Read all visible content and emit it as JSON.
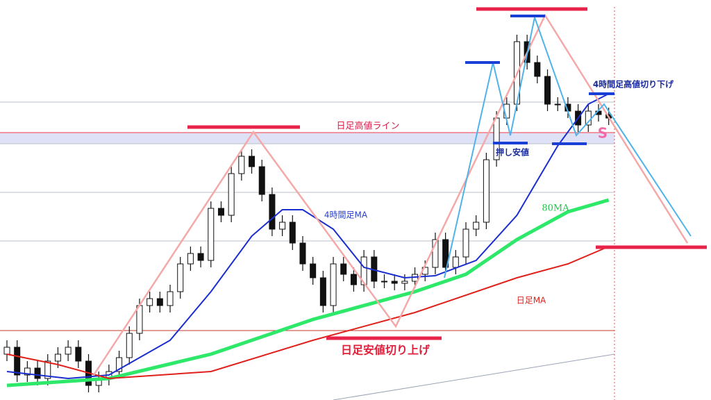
{
  "chart_data": {
    "type": "candlestick",
    "xlim": [
      -0.68,
      69.03
    ],
    "ylim": [
      0,
      576
    ],
    "open": [
      66,
      76,
      36,
      46,
      31,
      56,
      66,
      76,
      56,
      21,
      31,
      41,
      61,
      96,
      136,
      146,
      136,
      156,
      196,
      211,
      201,
      276,
      266,
      326,
      351,
      336,
      296,
      246,
      256,
      226,
      196,
      176,
      136,
      196,
      181,
      166,
      206,
      171,
      171,
      168,
      171,
      181,
      191,
      231,
      191,
      206,
      246,
      256,
      346,
      406,
      426,
      516,
      486,
      466,
      426,
      426,
      416,
      396,
      416,
      411
    ],
    "high": [
      86,
      86,
      56,
      56,
      66,
      76,
      86,
      86,
      66,
      41,
      51,
      71,
      106,
      146,
      156,
      156,
      166,
      206,
      221,
      221,
      286,
      286,
      336,
      361,
      361,
      346,
      306,
      266,
      266,
      236,
      206,
      186,
      206,
      206,
      191,
      216,
      216,
      181,
      181,
      181,
      191,
      201,
      241,
      241,
      216,
      256,
      266,
      356,
      416,
      436,
      526,
      526,
      496,
      476,
      436,
      436,
      426,
      426,
      426,
      421
    ],
    "low": [
      56,
      26,
      26,
      21,
      21,
      46,
      56,
      46,
      11,
      11,
      21,
      31,
      51,
      86,
      126,
      126,
      126,
      146,
      186,
      191,
      191,
      256,
      256,
      316,
      326,
      286,
      236,
      236,
      216,
      186,
      166,
      126,
      126,
      171,
      156,
      156,
      161,
      161,
      158,
      158,
      161,
      171,
      181,
      181,
      181,
      196,
      236,
      246,
      336,
      396,
      416,
      476,
      456,
      416,
      416,
      406,
      386,
      386,
      401,
      396
    ],
    "close": [
      76,
      36,
      46,
      31,
      56,
      66,
      76,
      56,
      21,
      31,
      41,
      61,
      96,
      136,
      146,
      136,
      156,
      196,
      211,
      201,
      276,
      266,
      326,
      351,
      336,
      296,
      246,
      256,
      226,
      196,
      176,
      136,
      196,
      181,
      166,
      206,
      171,
      171,
      168,
      171,
      181,
      191,
      231,
      191,
      206,
      246,
      256,
      346,
      406,
      426,
      516,
      486,
      466,
      426,
      426,
      416,
      396,
      416,
      411,
      406
    ],
    "ma_lines": [
      {
        "name": "4時間足MA",
        "color": "#1a2ecf",
        "x": [
          0,
          6,
          10,
          16,
          20,
          24,
          27,
          29,
          32,
          35,
          39,
          42,
          46,
          50,
          54,
          57,
          59
        ],
        "values": [
          41,
          31,
          36,
          86,
          156,
          236,
          274,
          274,
          246,
          191,
          176,
          179,
          201,
          266,
          366,
          426,
          441
        ]
      },
      {
        "name": "80MA",
        "color": "#2ee86a",
        "x": [
          0,
          10,
          20,
          30,
          40,
          45,
          50,
          55,
          59
        ],
        "values": [
          21,
          31,
          66,
          116,
          156,
          181,
          231,
          271,
          288
        ]
      },
      {
        "name": "日足MA",
        "color": "#e0201a",
        "x": [
          0,
          5,
          10,
          20,
          30,
          40,
          50,
          55,
          59
        ],
        "values": [
          66,
          51,
          31,
          41,
          86,
          126,
          176,
          196,
          221
        ]
      }
    ],
    "annotations": {
      "daily_high_line": "日足高値ライン",
      "daily_low_raise": "日足安値切り上げ",
      "pullback_low": "押し安値",
      "h4_high_lower": "4時間足高値切り下げ",
      "signal": "S"
    }
  }
}
